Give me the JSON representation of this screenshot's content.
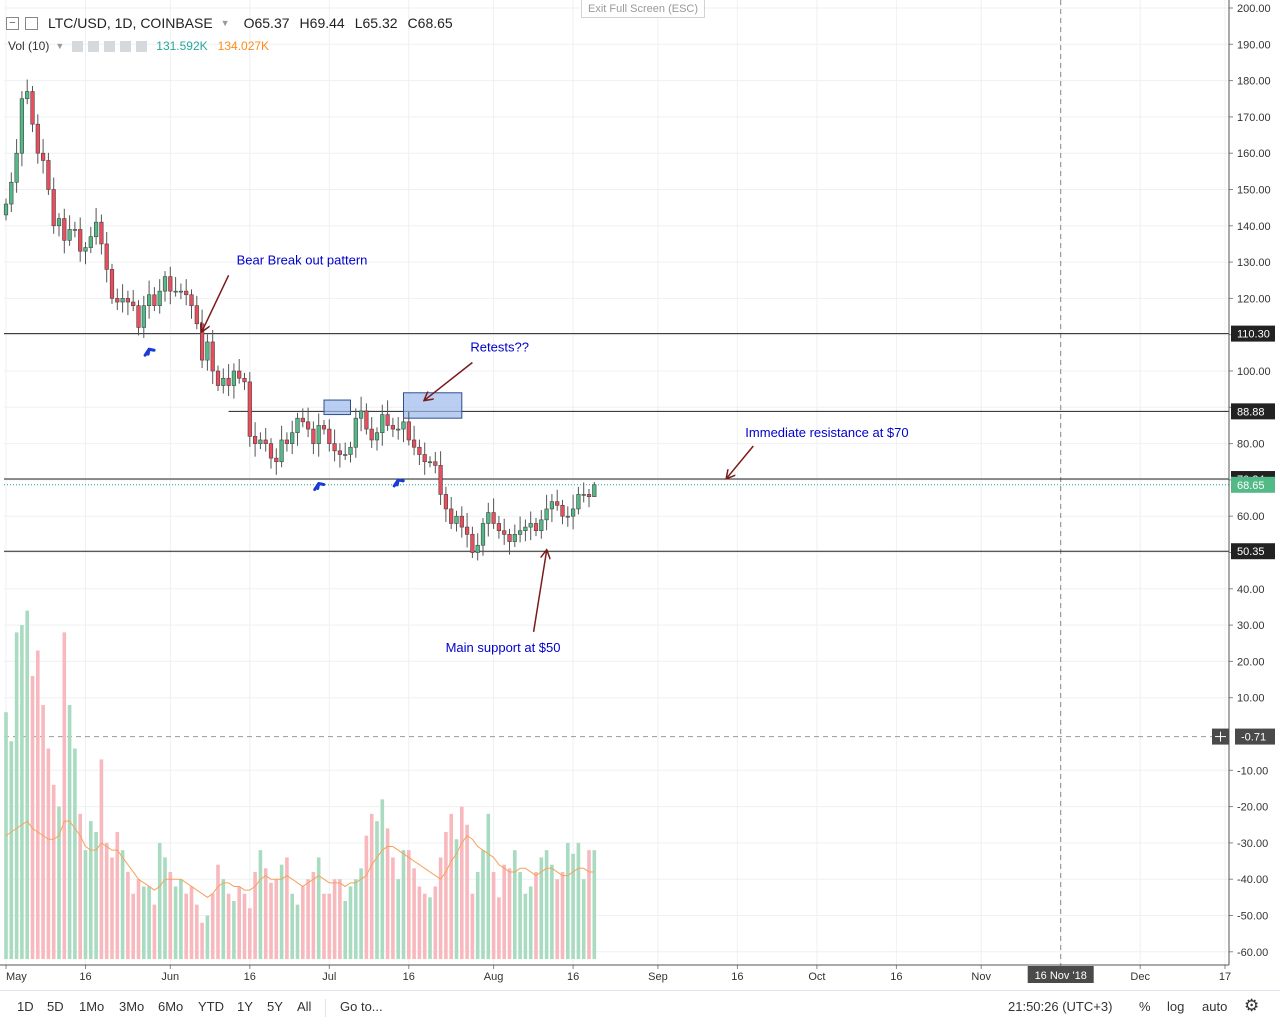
{
  "header": {
    "symbol": "LTC/USD, 1D, COINBASE",
    "open_label": "O",
    "open": "65.37",
    "high_label": "H",
    "high": "69.44",
    "low_label": "L",
    "low": "65.32",
    "close_label": "C",
    "close": "68.65",
    "collapse_icon": "minus-square-icon",
    "expand_icon": "square-icon"
  },
  "volume_legend": {
    "label": "Vol (10)",
    "value_1": "131.592K",
    "value_2": "134.027K",
    "value_1_color": "#26a69a",
    "value_2_color": "#ff8c1a"
  },
  "exit_fullscreen": "Exit Full Screen (ESC)",
  "colors": {
    "up": "#26a69a",
    "down": "#ef5350",
    "up_body": "#53b987",
    "down_body": "#eb4d5c",
    "annotation_text": "#0000cc",
    "annotation_arrow": "#7b1a1a",
    "highlight_fill": "#9cb9ec",
    "highlight_stroke": "#2e4f8f",
    "vol_up": "#a8dbc0",
    "vol_down": "#f7b9bd",
    "vol_ma": "#f5a25d"
  },
  "chart_data": {
    "type": "candlestick",
    "title": "LTC/USD, 1D, COINBASE",
    "price_axis": {
      "ylim": [
        -62,
        202
      ],
      "ticks": [
        "200.00",
        "190.00",
        "180.00",
        "170.00",
        "160.00",
        "150.00",
        "140.00",
        "130.00",
        "120.00",
        "110.00",
        "100.00",
        "90.00",
        "80.00",
        "70.00",
        "60.00",
        "50.00",
        "40.00",
        "30.00",
        "20.00",
        "10.00",
        "-10.00",
        "-20.00",
        "-30.00",
        "-40.00",
        "-50.00",
        "-60.00"
      ],
      "tick_values": [
        200,
        190,
        180,
        170,
        160,
        150,
        140,
        130,
        120,
        110,
        100,
        90,
        80,
        70,
        60,
        50,
        40,
        30,
        20,
        10,
        -10,
        -20,
        -30,
        -40,
        -50,
        -60
      ]
    },
    "time_axis": {
      "start_date": "2018-05-01",
      "labels": [
        {
          "text": "May",
          "date": "2018-05-01"
        },
        {
          "text": "16",
          "date": "2018-05-16"
        },
        {
          "text": "Jun",
          "date": "2018-06-01"
        },
        {
          "text": "16",
          "date": "2018-06-16"
        },
        {
          "text": "Jul",
          "date": "2018-07-01"
        },
        {
          "text": "16",
          "date": "2018-07-16"
        },
        {
          "text": "Aug",
          "date": "2018-08-01"
        },
        {
          "text": "16",
          "date": "2018-08-16"
        },
        {
          "text": "Sep",
          "date": "2018-09-01"
        },
        {
          "text": "16",
          "date": "2018-09-16"
        },
        {
          "text": "Oct",
          "date": "2018-10-01"
        },
        {
          "text": "16",
          "date": "2018-10-16"
        },
        {
          "text": "Nov",
          "date": "2018-11-01"
        },
        {
          "text": "16",
          "date": "2018-11-16"
        },
        {
          "text": "Dec",
          "date": "2018-12-01"
        },
        {
          "text": "17",
          "date": "2018-12-17"
        }
      ],
      "cursor_label": "16 Nov '18",
      "cursor_date": "2018-11-16"
    },
    "closes": [
      146,
      152,
      160,
      175,
      177,
      168,
      160,
      158,
      150,
      140,
      142,
      136,
      139,
      139,
      133,
      134,
      137,
      141,
      135,
      128,
      120,
      119,
      120,
      119,
      118,
      112,
      118,
      121,
      118,
      122,
      126,
      122,
      122,
      122,
      121,
      118,
      113,
      103,
      108,
      100,
      96,
      98,
      96,
      100,
      98,
      97,
      82,
      80,
      81,
      80,
      76,
      75,
      81,
      80,
      83,
      87,
      86,
      84,
      80,
      85,
      84,
      80,
      78,
      77,
      77,
      79,
      87,
      89,
      84,
      81,
      83,
      88,
      85,
      84,
      84,
      86,
      81,
      79,
      77,
      75,
      75,
      74,
      66,
      62,
      58,
      60,
      57,
      55,
      50,
      52,
      58,
      61,
      58,
      56,
      55,
      53,
      55,
      56,
      57,
      58,
      56,
      59,
      62,
      64,
      63,
      60,
      60,
      62,
      66,
      66,
      65.37,
      68.65
    ],
    "last_high": 69.44,
    "last_low": 65.32,
    "volume_axis_note": "Volume pane shares the right price axis (negative values)",
    "volume": [
      68,
      60,
      90,
      92,
      96,
      78,
      85,
      70,
      58,
      48,
      42,
      90,
      70,
      58,
      40,
      30,
      38,
      35,
      55,
      32,
      28,
      35,
      30,
      24,
      18,
      22,
      20,
      20,
      15,
      32,
      28,
      24,
      20,
      22,
      18,
      20,
      15,
      10,
      12,
      18,
      26,
      22,
      18,
      16,
      20,
      18,
      14,
      24,
      30,
      25,
      21,
      22,
      26,
      28,
      18,
      15,
      20,
      22,
      24,
      28,
      18,
      18,
      22,
      22,
      16,
      20,
      22,
      25,
      34,
      40,
      38,
      44,
      36,
      28,
      22,
      30,
      30,
      25,
      20,
      18,
      17,
      20,
      28,
      35,
      40,
      33,
      42,
      37,
      18,
      24,
      30,
      40,
      24,
      17,
      26,
      25,
      30,
      24,
      18,
      20,
      24,
      28,
      30,
      26,
      22,
      24,
      32,
      29,
      32,
      22,
      30,
      30
    ],
    "volume_ma": [
      34,
      35,
      36,
      37,
      38,
      36,
      35,
      34,
      33,
      33,
      34,
      38,
      38,
      36,
      34,
      31,
      30,
      30,
      32,
      31,
      30,
      30,
      28,
      26,
      24,
      22,
      21,
      20,
      19,
      20,
      22,
      22,
      22,
      22,
      21,
      20,
      19,
      18,
      17,
      18,
      20,
      21,
      21,
      20,
      20,
      19,
      19,
      20,
      22,
      23,
      22,
      22,
      22,
      23,
      22,
      21,
      20,
      21,
      22,
      23,
      22,
      21,
      21,
      21,
      20,
      21,
      21,
      22,
      23,
      26,
      28,
      30,
      31,
      31,
      30,
      29,
      28,
      27,
      26,
      25,
      24,
      23,
      22,
      24,
      27,
      29,
      32,
      34,
      33,
      31,
      30,
      29,
      28,
      26,
      25,
      24,
      24,
      25,
      25,
      24,
      23,
      24,
      25,
      25,
      24,
      23,
      23,
      24,
      25,
      25,
      24,
      24
    ],
    "levels": [
      {
        "value": 110.3,
        "label": "110.30"
      },
      {
        "value": 88.88,
        "label": "88.88"
      },
      {
        "value": 70.24,
        "label": "70.24"
      },
      {
        "value": 50.35,
        "label": "50.35"
      }
    ],
    "last_price_label": "68.65",
    "crosshair_label": "-0.71",
    "crosshair_value": -0.71,
    "annotations": [
      {
        "text": "Bear Break out pattern",
        "anchor_date": "2018-06-07",
        "anchor_price": 111,
        "text_date": "2018-06-12",
        "text_price": 128
      },
      {
        "text": "Retests??",
        "anchor_date": "2018-07-19",
        "anchor_price": 92,
        "text_date": "2018-07-28",
        "text_price": 104
      },
      {
        "text": "Immediate resistance at $70",
        "anchor_date": "2018-09-14",
        "anchor_price": 70.5,
        "text_date": "2018-09-19",
        "text_price": 81
      },
      {
        "text": "Main support at $50",
        "anchor_date": "2018-08-11",
        "anchor_price": 50.5,
        "text_date": "2018-08-01",
        "text_price": 24
      }
    ],
    "bounce_markers": [
      {
        "date": "2018-05-28",
        "price": 106
      },
      {
        "date": "2018-06-29",
        "price": 69
      },
      {
        "date": "2018-07-14",
        "price": 70
      }
    ],
    "highlight_boxes": [
      {
        "start_date": "2018-06-30",
        "end_date": "2018-07-05",
        "low": 88,
        "high": 92
      },
      {
        "start_date": "2018-07-15",
        "end_date": "2018-07-26",
        "low": 87,
        "high": 94
      }
    ],
    "grid": true,
    "legend": "top-left"
  },
  "bottom_bar": {
    "ranges": [
      "1D",
      "5D",
      "1Mo",
      "3Mo",
      "6Mo",
      "YTD",
      "1Y",
      "5Y",
      "All"
    ],
    "goto": "Go to...",
    "time": "21:50:26 (UTC+3)",
    "percent": "%",
    "log": "log",
    "auto": "auto",
    "settings_icon": "gear-icon"
  }
}
